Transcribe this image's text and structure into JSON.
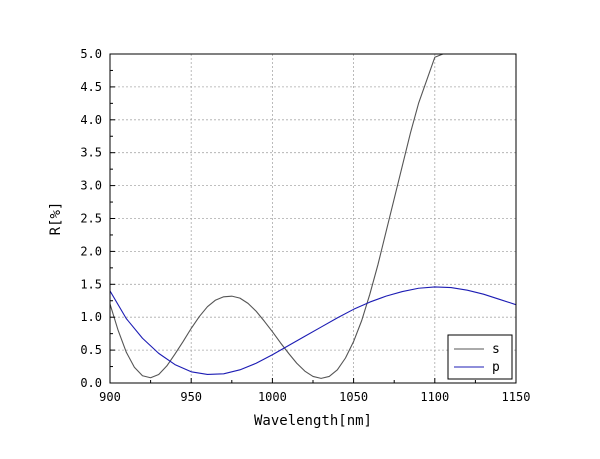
{
  "chart_data": {
    "type": "line",
    "title": "",
    "xlabel": "Wavelength[nm]",
    "ylabel": "R[%]",
    "xlim": [
      900,
      1150
    ],
    "ylim": [
      0,
      5
    ],
    "xticks": [
      900,
      950,
      1000,
      1050,
      1100,
      1150
    ],
    "yticks": [
      0,
      0.5,
      1.0,
      1.5,
      2.0,
      2.5,
      3.0,
      3.5,
      4.0,
      4.5,
      5.0
    ],
    "xtick_labels": [
      "900",
      "950",
      "1000",
      "1050",
      "1100",
      "1150"
    ],
    "ytick_labels": [
      "0.0",
      "0.5",
      "1.0",
      "1.5",
      "2.0",
      "2.5",
      "3.0",
      "3.5",
      "4.0",
      "4.5",
      "5.0"
    ],
    "grid": true,
    "legend_position": "bottom-right",
    "series": [
      {
        "name": "s",
        "color": "#555555",
        "x": [
          900,
          905,
          910,
          915,
          920,
          925,
          930,
          935,
          940,
          945,
          950,
          955,
          960,
          965,
          970,
          975,
          980,
          985,
          990,
          995,
          1000,
          1005,
          1010,
          1015,
          1020,
          1025,
          1030,
          1035,
          1040,
          1045,
          1050,
          1055,
          1060,
          1065,
          1070,
          1075,
          1080,
          1085,
          1090,
          1095,
          1100,
          1105,
          1110,
          1115,
          1120,
          1125,
          1130,
          1135,
          1140
        ],
        "values": [
          1.2,
          0.8,
          0.47,
          0.24,
          0.11,
          0.08,
          0.13,
          0.26,
          0.44,
          0.63,
          0.83,
          1.01,
          1.16,
          1.26,
          1.31,
          1.32,
          1.29,
          1.21,
          1.09,
          0.94,
          0.78,
          0.61,
          0.45,
          0.3,
          0.18,
          0.1,
          0.07,
          0.1,
          0.2,
          0.38,
          0.63,
          0.95,
          1.35,
          1.8,
          2.3,
          2.8,
          3.3,
          3.8,
          4.25,
          4.6,
          4.95,
          5.0,
          5.0,
          5.0,
          5.0,
          5.0,
          5.0,
          5.0,
          5.0
        ]
      },
      {
        "name": "p",
        "color": "#1c1cb4",
        "x": [
          900,
          910,
          920,
          930,
          940,
          950,
          960,
          970,
          980,
          990,
          1000,
          1010,
          1020,
          1030,
          1040,
          1050,
          1060,
          1070,
          1080,
          1090,
          1100,
          1110,
          1120,
          1130,
          1140,
          1150
        ],
        "values": [
          1.4,
          0.98,
          0.68,
          0.45,
          0.28,
          0.17,
          0.13,
          0.14,
          0.2,
          0.3,
          0.43,
          0.57,
          0.71,
          0.85,
          0.99,
          1.12,
          1.23,
          1.32,
          1.39,
          1.44,
          1.46,
          1.45,
          1.41,
          1.35,
          1.27,
          1.19
        ]
      }
    ]
  }
}
